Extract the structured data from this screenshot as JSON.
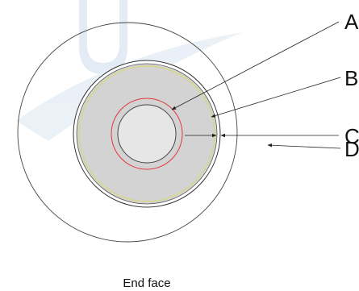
{
  "labels": {
    "a": "A",
    "b": "B",
    "c": "C",
    "d": "D"
  },
  "caption": "End face",
  "colors": {
    "background": "#ffffff",
    "outline": "#333333",
    "fill": "#d3d3d3",
    "core": "#e6e6e6",
    "red_ring": "#e0383f",
    "yellow_ring": "#d8d86a",
    "watermark": "#dfe9f3"
  }
}
